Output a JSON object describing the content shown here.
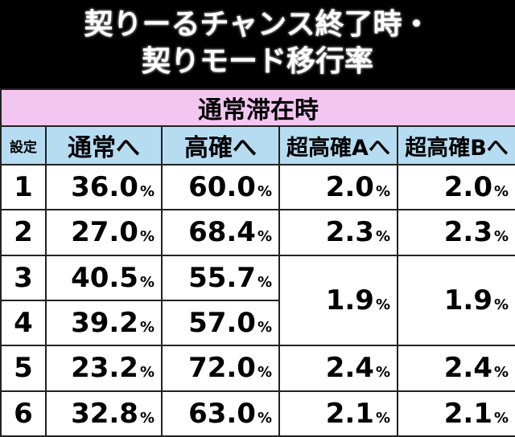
{
  "title": {
    "line1": "契りーるチャンス終了時・",
    "line2": "契りモード移行率"
  },
  "section_label": "通常滞在時",
  "headers": {
    "setting": "設定",
    "col1": "通常へ",
    "col2": "高確へ",
    "col3": "超高確Aへ",
    "col4": "超高確Bへ"
  },
  "percent_sign": "%",
  "rows": [
    {
      "setting": "1",
      "normal": "36.0",
      "high": "60.0",
      "superA": "2.0",
      "superB": "2.0"
    },
    {
      "setting": "2",
      "normal": "27.0",
      "high": "68.4",
      "superA": "2.3",
      "superB": "2.3"
    },
    {
      "setting": "3",
      "normal": "40.5",
      "high": "55.7"
    },
    {
      "setting": "4",
      "normal": "39.2",
      "high": "57.0"
    },
    {
      "setting": "5",
      "normal": "23.2",
      "high": "72.0",
      "superA": "2.4",
      "superB": "2.4"
    },
    {
      "setting": "6",
      "normal": "32.8",
      "high": "63.0",
      "superA": "2.1",
      "superB": "2.1"
    }
  ],
  "merged_34": {
    "superA": "1.9",
    "superB": "1.9"
  },
  "colors": {
    "section_bg": "#f3c6f1",
    "header_bg": "#b6dcf2",
    "cell_bg": "#ffffff",
    "title_bg": "#000000"
  }
}
